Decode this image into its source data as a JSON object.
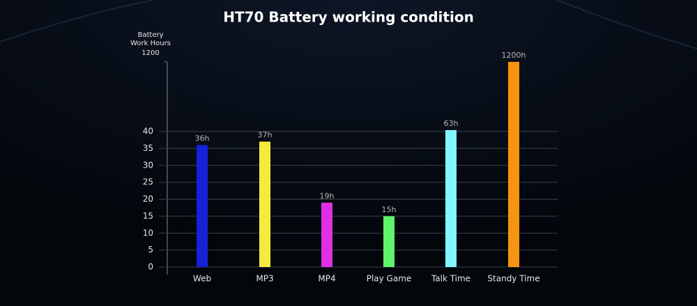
{
  "chart_data": {
    "type": "bar",
    "title": "HT70 Battery working condition",
    "y_label": [
      "Battery",
      "Work Hours"
    ],
    "categories": [
      "Web",
      "MP3",
      "MP4",
      "Play Game",
      "Talk Time",
      "Standy Time"
    ],
    "values": [
      36,
      37,
      19,
      15,
      63,
      1200
    ],
    "value_labels": [
      "36h",
      "37h",
      "19h",
      "15h",
      "63h",
      "1200h"
    ],
    "colors": [
      "#1521d6",
      "#f6ea3f",
      "#e030e6",
      "#5ef46a",
      "#80f6ff",
      "#f7940f"
    ],
    "ylim": [
      0,
      1200
    ],
    "yticks": [
      0,
      5,
      10,
      15,
      20,
      25,
      30,
      35,
      40,
      1200
    ],
    "grid": true
  }
}
